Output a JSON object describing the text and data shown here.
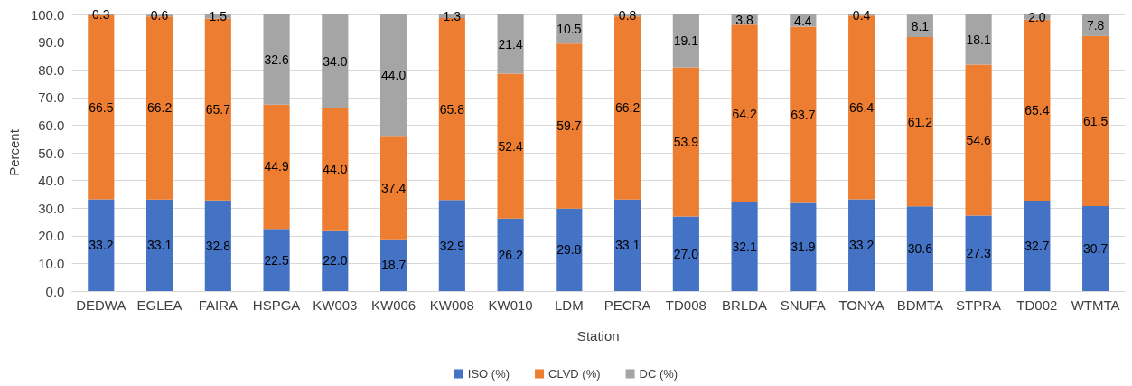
{
  "chart_data": {
    "type": "bar",
    "stacked": true,
    "xlabel": "Station",
    "ylabel": "Percent",
    "categories": [
      "DEDWA",
      "EGLEA",
      "FAIRA",
      "HSPGA",
      "KW003",
      "KW006",
      "KW008",
      "KW010",
      "LDM",
      "PECRA",
      "TD008",
      "BRLDA",
      "SNUFA",
      "TONYA",
      "BDMTA",
      "STPRA",
      "TD002",
      "WTMTA"
    ],
    "series": [
      {
        "name": "ISO (%)",
        "color": "#4472c4",
        "values": [
          33.2,
          33.1,
          32.8,
          22.5,
          22.0,
          18.7,
          32.9,
          26.2,
          29.8,
          33.1,
          27.0,
          32.1,
          31.9,
          33.2,
          30.6,
          27.3,
          32.7,
          30.7
        ],
        "value_labels": [
          "33.2",
          "33.1",
          "32.8",
          "22.5",
          "22.0",
          "18.7",
          "32.9",
          "26.2",
          "29.8",
          "33.1",
          "27.0",
          "32.1",
          "31.9",
          "33.2",
          "30.6",
          "27.3",
          "32.7",
          "30.7"
        ]
      },
      {
        "name": "CLVD (%)",
        "color": "#ed7d31",
        "values": [
          66.5,
          66.2,
          65.7,
          44.9,
          44.0,
          37.4,
          65.8,
          52.4,
          59.7,
          66.2,
          53.9,
          64.2,
          63.7,
          66.4,
          61.2,
          54.6,
          65.4,
          61.5
        ],
        "value_labels": [
          "66.5",
          "66.2",
          "65.7",
          "44.9",
          "44.0",
          "37.4",
          "65.8",
          "52.4",
          "59.7",
          "66.2",
          "53.9",
          "64.2",
          "63.7",
          "66.4",
          "61.2",
          "54.6",
          "65.4",
          "61.5"
        ]
      },
      {
        "name": "DC (%)",
        "color": "#a5a5a5",
        "values": [
          0.3,
          0.6,
          1.5,
          32.6,
          34.0,
          44.0,
          1.3,
          21.4,
          10.5,
          0.8,
          19.1,
          3.8,
          4.4,
          0.4,
          8.1,
          18.1,
          2.0,
          7.8
        ],
        "value_labels": [
          "0.3",
          "0.6",
          "1.5",
          "32.6",
          "34.0",
          "44.0",
          "1.3",
          "21.4",
          "10.5",
          "0.8",
          "19.1",
          "3.8",
          "4.4",
          "0.4",
          "8.1",
          "18.1",
          "2.0",
          "7.8"
        ]
      }
    ],
    "ylim": [
      0,
      100
    ],
    "yticks": [
      {
        "value": 0,
        "label": "0.0"
      },
      {
        "value": 10,
        "label": "10.0"
      },
      {
        "value": 20,
        "label": "20.0"
      },
      {
        "value": 30,
        "label": "30.0"
      },
      {
        "value": 40,
        "label": "40.0"
      },
      {
        "value": 50,
        "label": "50.0"
      },
      {
        "value": 60,
        "label": "60.0"
      },
      {
        "value": 70,
        "label": "70.0"
      },
      {
        "value": 80,
        "label": "80.0"
      },
      {
        "value": 90,
        "label": "90.0"
      },
      {
        "value": 100,
        "label": "100.0"
      }
    ],
    "grid": "y",
    "legend": "bottom"
  }
}
